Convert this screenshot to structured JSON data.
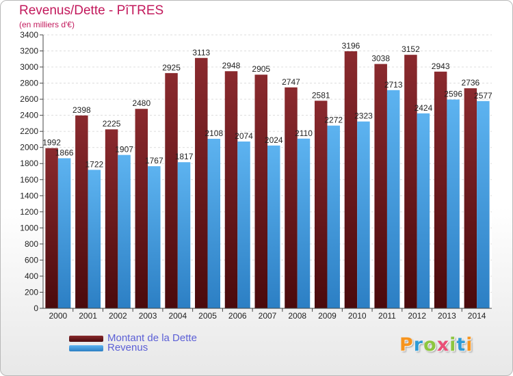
{
  "header": {
    "title": "Revenus/Dette - PîTRES",
    "subtitle": "(en milliers d'€)"
  },
  "brand": {
    "text": "Proxiti",
    "colors": [
      "#f7941d",
      "#2e9bd6",
      "#8dc63f",
      "#e94e77",
      "#8dc63f",
      "#2e9bd6",
      "#f7941d"
    ]
  },
  "chart_data": {
    "type": "bar",
    "title": "Revenus/Dette - PîTRES",
    "subtitle": "(en milliers d'€)",
    "categories": [
      "2000",
      "2001",
      "2002",
      "2003",
      "2004",
      "2005",
      "2006",
      "2007",
      "2008",
      "2009",
      "2010",
      "2011",
      "2012",
      "2013",
      "2014"
    ],
    "series": [
      {
        "name": "Montant de la Dette",
        "color": "#7a1a1f",
        "values": [
          1992,
          2398,
          2225,
          2480,
          2925,
          3113,
          2948,
          2905,
          2747,
          2581,
          3196,
          3038,
          3152,
          2943,
          2736
        ]
      },
      {
        "name": "Revenus",
        "color": "#4aa3e6",
        "values": [
          1866,
          1722,
          1907,
          1767,
          1817,
          2108,
          2074,
          2024,
          2110,
          2272,
          2323,
          2713,
          2424,
          2596,
          2577
        ]
      }
    ],
    "ylim": [
      0,
      3400
    ],
    "yticks": [
      0,
      200,
      400,
      600,
      800,
      1000,
      1200,
      1400,
      1600,
      1800,
      2000,
      2200,
      2400,
      2600,
      2800,
      3000,
      3200,
      3400
    ],
    "grid": true,
    "legend": "bottom-left"
  }
}
